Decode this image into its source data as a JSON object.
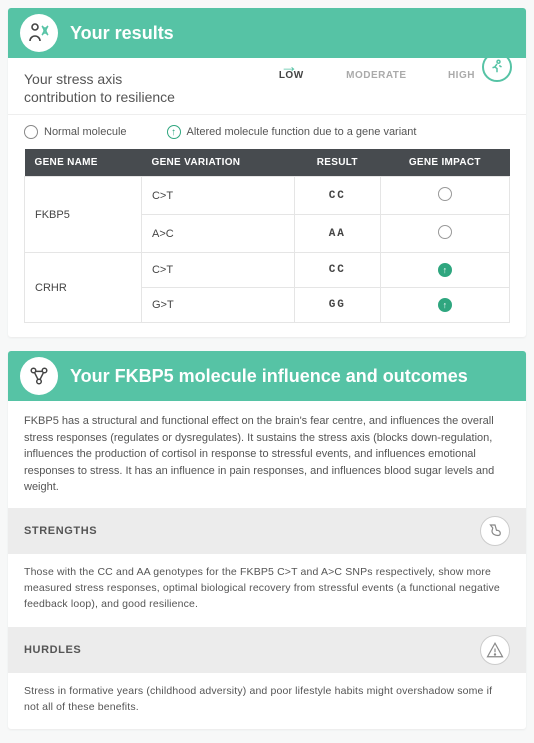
{
  "colors": {
    "accent": "#56c3a5",
    "header_text": "#ffffff",
    "table_header_bg": "#474b4f",
    "section_bg": "#ececec",
    "body_bg": "#f7f8f8",
    "border": "#e5e5e5",
    "text_muted": "#555555",
    "impact_green": "#2fa67f"
  },
  "results": {
    "title": "Your results",
    "subheading_l1": "Your stress axis",
    "subheading_l2": "contribution to resilience",
    "scale": {
      "labels": [
        "LOW",
        "MODERATE",
        "HIGH"
      ],
      "active_index": 0
    },
    "legend": {
      "normal": "Normal molecule",
      "altered": "Altered molecule function due to a gene variant"
    },
    "table": {
      "headers": [
        "GENE NAME",
        "GENE VARIATION",
        "RESULT",
        "GENE IMPACT"
      ],
      "genes": [
        {
          "name": "FKBP5",
          "rows": [
            {
              "variation": "C>T",
              "result": "CC",
              "impact": "normal"
            },
            {
              "variation": "A>C",
              "result": "AA",
              "impact": "normal"
            }
          ]
        },
        {
          "name": "CRHR",
          "rows": [
            {
              "variation": "C>T",
              "result": "CC",
              "impact": "altered"
            },
            {
              "variation": "G>T",
              "result": "GG",
              "impact": "altered"
            }
          ]
        }
      ]
    }
  },
  "molecule": {
    "title": "Your FKBP5 molecule influence and outcomes",
    "description": "FKBP5 has a structural and functional effect on the brain's fear centre, and influences the overall stress responses (regulates or dysregulates). It sustains the stress axis (blocks down-regulation, influences the production of cortisol in response to stressful events, and influences emotional responses to stress. It has an influence in pain responses, and influences blood sugar levels and weight.",
    "strengths": {
      "label": "STRENGTHS",
      "text": "Those with the CC and AA genotypes for the FKBP5 C>T and A>C SNPs respectively, show more measured stress responses, optimal biological recovery from stressful events (a functional negative feedback loop), and good resilience."
    },
    "hurdles": {
      "label": "HURDLES",
      "text": "Stress in formative years (childhood adversity) and poor lifestyle habits might overshadow some if not all of these benefits."
    }
  }
}
